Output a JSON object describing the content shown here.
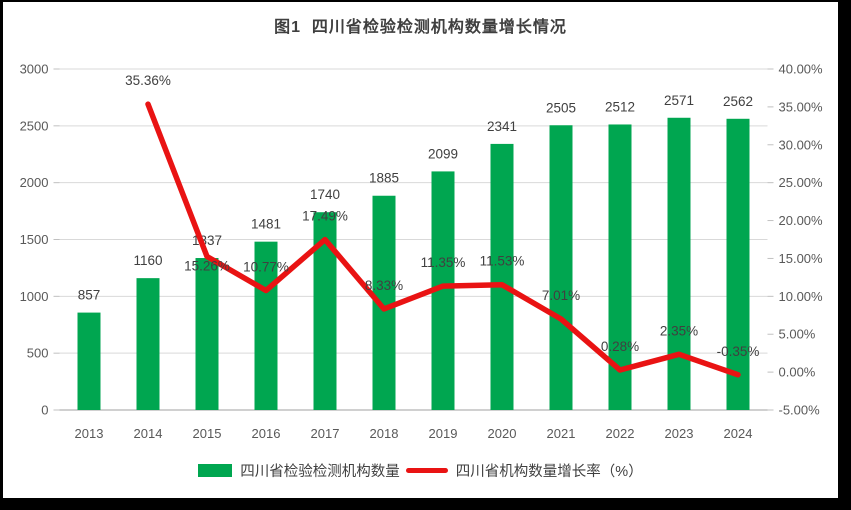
{
  "title": "图1  四川省检验检测机构数量增长情况",
  "colors": {
    "bar": "#00A650",
    "line": "#E91313",
    "grid": "#D9D9D9",
    "axis_line": "#C0C0C0",
    "axis_text": "#595959",
    "data_label": "#404040",
    "title_text": "#3F3F3F",
    "frame": "#000000",
    "background": "#FFFFFF"
  },
  "chart_data": {
    "type": "bar",
    "subtype": "bar-and-line-combo",
    "title": "图1  四川省检验检测机构数量增长情况",
    "categories": [
      "2013",
      "2014",
      "2015",
      "2016",
      "2017",
      "2018",
      "2019",
      "2020",
      "2021",
      "2022",
      "2023",
      "2024"
    ],
    "series": [
      {
        "name": "四川省检验检测机构数量",
        "type": "bar",
        "axis": "left",
        "values": [
          857,
          1160,
          1337,
          1481,
          1740,
          1885,
          2099,
          2341,
          2505,
          2512,
          2571,
          2562
        ],
        "data_labels": [
          "857",
          "1160",
          "1337",
          "1481",
          "1740",
          "1885",
          "2099",
          "2341",
          "2505",
          "2512",
          "2571",
          "2562"
        ]
      },
      {
        "name": "四川省机构数量增长率（%）",
        "type": "line",
        "axis": "right",
        "values": [
          null,
          35.36,
          15.26,
          10.77,
          17.49,
          8.33,
          11.35,
          11.53,
          7.01,
          0.28,
          2.35,
          -0.35
        ],
        "data_labels": [
          "",
          "35.36%",
          "15.26%",
          "10.77%",
          "17.49%",
          "8.33%",
          "11.35%",
          "11.53%",
          "7.01%",
          "0.28%",
          "2.35%",
          "-0.35%"
        ]
      }
    ],
    "left_axis": {
      "min": 0,
      "max": 3000,
      "step": 500,
      "tick_labels": [
        "0",
        "500",
        "1000",
        "1500",
        "2000",
        "2500",
        "3000"
      ]
    },
    "right_axis": {
      "min": -5,
      "max": 40,
      "step": 5,
      "tick_labels": [
        "-5.00%",
        "0.00%",
        "5.00%",
        "10.00%",
        "15.00%",
        "20.00%",
        "25.00%",
        "30.00%",
        "35.00%",
        "40.00%"
      ]
    },
    "grid": true,
    "legend_position": "bottom"
  },
  "legend": {
    "bar_label": "四川省检验检测机构数量",
    "line_label": "四川省机构数量增长率（%）"
  }
}
